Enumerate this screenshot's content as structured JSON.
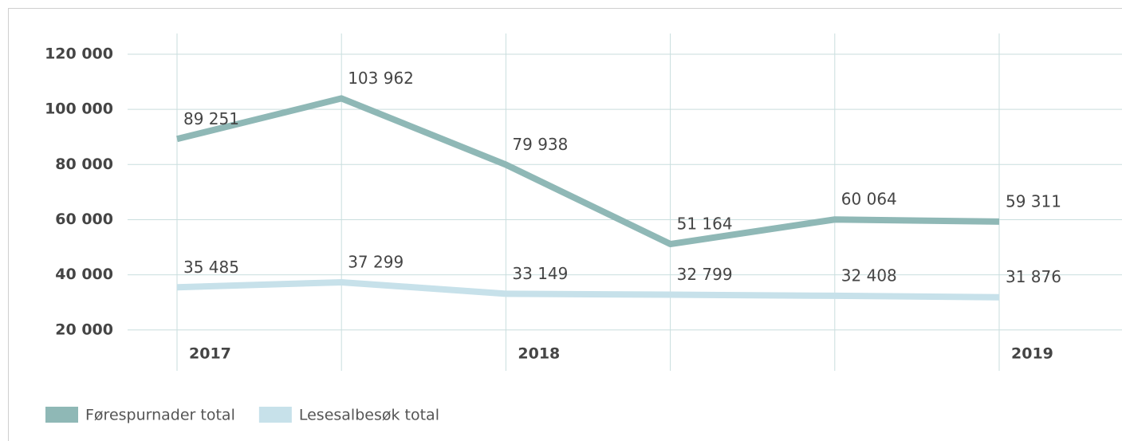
{
  "chart_data": {
    "type": "line",
    "categories": [
      "2017",
      null,
      "2018",
      null,
      null,
      "2019"
    ],
    "series": [
      {
        "name": "Førespurnader total",
        "color": "#8fb8b6",
        "values": [
          89251,
          103962,
          79938,
          51164,
          60064,
          59311
        ],
        "value_labels": [
          "89 251",
          "103 962",
          "79 938",
          "51 164",
          "60 064",
          "59 311"
        ]
      },
      {
        "name": "Lesesalbesøk total",
        "color": "#c7e1ea",
        "values": [
          35485,
          37299,
          33149,
          32799,
          32408,
          31876
        ],
        "value_labels": [
          "35 485",
          "37 299",
          "33 149",
          "32 799",
          "32 408",
          "31 876"
        ]
      }
    ],
    "ylim": [
      5200,
      127500
    ],
    "yticks": [
      {
        "value": 20000,
        "label": "20 000"
      },
      {
        "value": 40000,
        "label": "40 000"
      },
      {
        "value": 60000,
        "label": "60 000"
      },
      {
        "value": 80000,
        "label": "80 000"
      },
      {
        "value": 100000,
        "label": "100 000"
      },
      {
        "value": 120000,
        "label": "120 000"
      }
    ],
    "grid": true
  }
}
